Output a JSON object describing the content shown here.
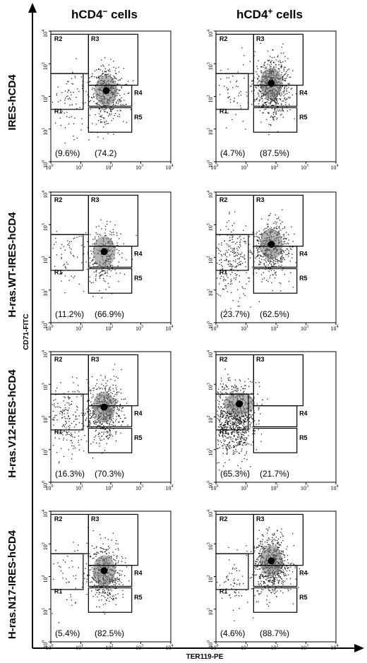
{
  "figure": {
    "columns": [
      {
        "base": "hCD4",
        "sup": "−",
        "tail": " cells"
      },
      {
        "base": "hCD4",
        "sup": "+",
        "tail": " cells"
      }
    ],
    "rows": [
      "IRES-hCD4",
      "H-ras.WT-IRES-hCD4",
      "H-ras.V12-IRES-hCD4",
      "H-ras.N17-IRES-hCD4"
    ],
    "ylabel": "CD71-FITC",
    "xlabel": "TER119-PE",
    "ticks": [
      "10",
      "10",
      "10",
      "10",
      "10"
    ],
    "tick_exponents": [
      "0",
      "1",
      "2",
      "3",
      "4"
    ],
    "gates": [
      "R1",
      "R2",
      "R3",
      "R4",
      "R5"
    ],
    "colors": {
      "axis": "#000000",
      "dots": "#1a1a1a",
      "density": "#7a7a7a"
    }
  },
  "chart_data": [
    {
      "type": "scatter",
      "row": "IRES-hCD4",
      "column": "hCD4− cells",
      "xlabel": "TER119-PE",
      "ylabel": "CD71-FITC",
      "xlim": [
        1,
        10000
      ],
      "ylim": [
        1,
        10000
      ],
      "xscale": "log",
      "yscale": "log",
      "annotations": [
        "(9.6%)",
        "(74.2)"
      ],
      "pct_left": 9.6,
      "pct_right": 74.2,
      "density_center": [
        70,
        150
      ],
      "density": "medium"
    },
    {
      "type": "scatter",
      "row": "IRES-hCD4",
      "column": "hCD4+ cells",
      "xlabel": "TER119-PE",
      "ylabel": "CD71-FITC",
      "xlim": [
        1,
        10000
      ],
      "ylim": [
        1,
        10000
      ],
      "xscale": "log",
      "yscale": "log",
      "annotations": [
        "(4.7%)",
        "(87.5%)"
      ],
      "pct_left": 4.7,
      "pct_right": 87.5,
      "density_center": [
        70,
        250
      ],
      "density": "high"
    },
    {
      "type": "scatter",
      "row": "H-ras.WT-IRES-hCD4",
      "column": "hCD4− cells",
      "xlabel": "TER119-PE",
      "ylabel": "CD71-FITC",
      "xlim": [
        1,
        10000
      ],
      "ylim": [
        1,
        10000
      ],
      "xscale": "log",
      "yscale": "log",
      "annotations": [
        "(11.2%)",
        "(66.9%)"
      ],
      "pct_left": 11.2,
      "pct_right": 66.9,
      "density_center": [
        60,
        150
      ],
      "density": "low"
    },
    {
      "type": "scatter",
      "row": "H-ras.WT-IRES-hCD4",
      "column": "hCD4+ cells",
      "xlabel": "TER119-PE",
      "ylabel": "CD71-FITC",
      "xlim": [
        1,
        10000
      ],
      "ylim": [
        1,
        10000
      ],
      "xscale": "log",
      "yscale": "log",
      "annotations": [
        "(23.7%)",
        "(62.5%)"
      ],
      "pct_left": 23.7,
      "pct_right": 62.5,
      "density_center": [
        70,
        250
      ],
      "density": "high"
    },
    {
      "type": "scatter",
      "row": "H-ras.V12-IRES-hCD4",
      "column": "hCD4− cells",
      "xlabel": "TER119-PE",
      "ylabel": "CD71-FITC",
      "xlim": [
        1,
        10000
      ],
      "ylim": [
        1,
        10000
      ],
      "xscale": "log",
      "yscale": "log",
      "annotations": [
        "(16.3%)",
        "(70.3%)"
      ],
      "pct_left": 16.3,
      "pct_right": 70.3,
      "density_center": [
        60,
        200
      ],
      "density": "high"
    },
    {
      "type": "scatter",
      "row": "H-ras.V12-IRES-hCD4",
      "column": "hCD4+ cells",
      "xlabel": "TER119-PE",
      "ylabel": "CD71-FITC",
      "xlim": [
        1,
        10000
      ],
      "ylim": [
        1,
        10000
      ],
      "xscale": "log",
      "yscale": "log",
      "annotations": [
        "(65.3%)",
        "(21.7%)"
      ],
      "pct_left": 65.3,
      "pct_right": 21.7,
      "density_center": [
        6,
        250
      ],
      "density": "very-high"
    },
    {
      "type": "scatter",
      "row": "H-ras.N17-IRES-hCD4",
      "column": "hCD4− cells",
      "xlabel": "TER119-PE",
      "ylabel": "CD71-FITC",
      "xlim": [
        1,
        10000
      ],
      "ylim": [
        1,
        10000
      ],
      "xscale": "log",
      "yscale": "log",
      "annotations": [
        "(5.4%)",
        "(82.5%)"
      ],
      "pct_left": 5.4,
      "pct_right": 82.5,
      "density_center": [
        60,
        150
      ],
      "density": "medium"
    },
    {
      "type": "scatter",
      "row": "H-ras.N17-IRES-hCD4",
      "column": "hCD4+ cells",
      "xlabel": "TER119-PE",
      "ylabel": "CD71-FITC",
      "xlim": [
        1,
        10000
      ],
      "ylim": [
        1,
        10000
      ],
      "xscale": "log",
      "yscale": "log",
      "annotations": [
        "(4.6%)",
        "(88.7%)"
      ],
      "pct_left": 4.6,
      "pct_right": 88.7,
      "density_center": [
        70,
        300
      ],
      "density": "high"
    }
  ]
}
